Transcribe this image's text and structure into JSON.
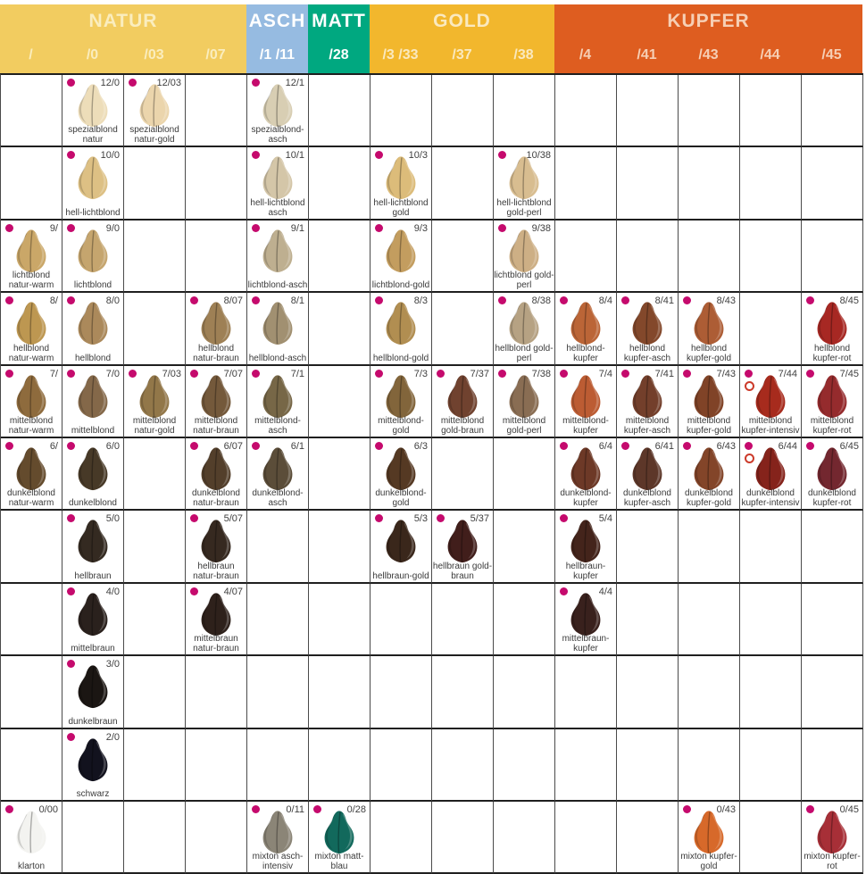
{
  "palette": {
    "dot": "#C50A6D",
    "intensiv_ring": "#CC3A2A",
    "grid_line_heavy": "#1f1f1f",
    "grid_line_light": "#4a4a4a",
    "code_text": "#3f3f3f",
    "name_text": "#3a3a3a"
  },
  "groups": [
    {
      "label": "NATUR",
      "color": "#F2CC60",
      "text": "#FAEDBE",
      "span": 4
    },
    {
      "label": "ASCH",
      "color": "#96BBE1",
      "text": "#FFFFFF",
      "span": 1
    },
    {
      "label": "MATT",
      "color": "#00A880",
      "text": "#FFFFFF",
      "span": 1
    },
    {
      "label": "GOLD",
      "color": "#F2B72D",
      "text": "#FAE9BF",
      "span": 3
    },
    {
      "label": "KUPFER",
      "color": "#DE5D20",
      "text": "#F6CFB5",
      "span": 5
    }
  ],
  "columns": [
    "/",
    "/0",
    "/03",
    "/07",
    "/1 /11",
    "/28",
    "/3 /33",
    "/37",
    "/38",
    "/4",
    "/41",
    "/43",
    "/44",
    "/45"
  ],
  "rows": [
    [
      null,
      {
        "code": "12/0",
        "name": "spezialblond natur",
        "color": "#EDDDB9"
      },
      {
        "code": "12/03",
        "name": "spezialblond natur-gold",
        "color": "#EBD5AC"
      },
      null,
      {
        "code": "12/1",
        "name": "spezialblond-asch",
        "color": "#D8CEB3"
      },
      null,
      null,
      null,
      null,
      null,
      null,
      null,
      null,
      null
    ],
    [
      null,
      {
        "code": "10/0",
        "name": "hell-lichtblond",
        "color": "#DDC084"
      },
      null,
      null,
      {
        "code": "10/1",
        "name": "hell-lichtblond asch",
        "color": "#D4C6A8"
      },
      null,
      {
        "code": "10/3",
        "name": "hell-lichtblond gold",
        "color": "#DCBC7A"
      },
      null,
      {
        "code": "10/38",
        "name": "hell-lichtblond gold-perl",
        "color": "#D8BD90"
      },
      null,
      null,
      null,
      null,
      null
    ],
    [
      {
        "code": "9/",
        "name": "lichtblond natur-warm",
        "color": "#CAA768"
      },
      {
        "code": "9/0",
        "name": "lichtblond",
        "color": "#C5A56E"
      },
      null,
      null,
      {
        "code": "9/1",
        "name": "lichtblond-asch",
        "color": "#BEAF90"
      },
      null,
      {
        "code": "9/3",
        "name": "lichtblond-gold",
        "color": "#C39D5F"
      },
      null,
      {
        "code": "9/38",
        "name": "lichtblond gold-perl",
        "color": "#CDAF85"
      },
      null,
      null,
      null,
      null,
      null
    ],
    [
      {
        "code": "8/",
        "name": "hellblond natur-warm",
        "color": "#BD9751"
      },
      {
        "code": "8/0",
        "name": "hellblond",
        "color": "#AB895B"
      },
      null,
      {
        "code": "8/07",
        "name": "hellblond natur-braun",
        "color": "#9E8055"
      },
      {
        "code": "8/1",
        "name": "hellblond-asch",
        "color": "#A19071"
      },
      null,
      {
        "code": "8/3",
        "name": "hellblond-gold",
        "color": "#B18E51"
      },
      null,
      {
        "code": "8/38",
        "name": "hellblond gold-perl",
        "color": "#B6A283"
      },
      {
        "code": "8/4",
        "name": "hellblond-kupfer",
        "color": "#BB6537"
      },
      {
        "code": "8/41",
        "name": "hellblond kupfer-asch",
        "color": "#83482B"
      },
      {
        "code": "8/43",
        "name": "hellblond kupfer-gold",
        "color": "#AD5D35"
      },
      null,
      {
        "code": "8/45",
        "name": "hellblond kupfer-rot",
        "color": "#A72823"
      }
    ],
    [
      {
        "code": "7/",
        "name": "mittelblond natur-warm",
        "color": "#8E6B3D"
      },
      {
        "code": "7/0",
        "name": "mittelblond",
        "color": "#846849"
      },
      {
        "code": "7/03",
        "name": "mittelblond natur-gold",
        "color": "#927749"
      },
      {
        "code": "7/07",
        "name": "mittelblond natur-braun",
        "color": "#74593B"
      },
      {
        "code": "7/1",
        "name": "mittelblond-asch",
        "color": "#776747"
      },
      null,
      {
        "code": "7/3",
        "name": "mittelblond-gold",
        "color": "#82653B"
      },
      {
        "code": "7/37",
        "name": "mittelblond gold-braun",
        "color": "#70422F"
      },
      {
        "code": "7/38",
        "name": "mittelblond gold-perl",
        "color": "#896D53"
      },
      {
        "code": "7/4",
        "name": "mittelblond-kupfer",
        "color": "#BC5C33"
      },
      {
        "code": "7/41",
        "name": "mittelblond kupfer-asch",
        "color": "#733F2B"
      },
      {
        "code": "7/43",
        "name": "mittelblond kupfer-gold",
        "color": "#804327"
      },
      {
        "code": "7/44",
        "name": "mittelblond kupfer-intensiv",
        "color": "#A72B1D",
        "marker": true
      },
      {
        "code": "7/45",
        "name": "mittelblond kupfer-rot",
        "color": "#952B2D"
      }
    ],
    [
      {
        "code": "6/",
        "name": "dunkelblond natur-warm",
        "color": "#644B2D"
      },
      {
        "code": "6/0",
        "name": "dunkelblond",
        "color": "#473927"
      },
      null,
      {
        "code": "6/07",
        "name": "dunkelblond natur-braun",
        "color": "#533F2B"
      },
      {
        "code": "6/1",
        "name": "dunkelblond-asch",
        "color": "#5B4D39"
      },
      null,
      {
        "code": "6/3",
        "name": "dunkelblond-gold",
        "color": "#553923"
      },
      null,
      null,
      {
        "code": "6/4",
        "name": "dunkelblond-kupfer",
        "color": "#6D3927"
      },
      {
        "code": "6/41",
        "name": "dunkelblond kupfer-asch",
        "color": "#5D3729"
      },
      {
        "code": "6/43",
        "name": "dunkelblond kupfer-gold",
        "color": "#834529"
      },
      {
        "code": "6/44",
        "name": "dunkelblond kupfer-intensiv",
        "color": "#85231B",
        "marker": true
      },
      {
        "code": "6/45",
        "name": "dunkelblond kupfer-rot",
        "color": "#73272F"
      }
    ],
    [
      null,
      {
        "code": "5/0",
        "name": "hellbraun",
        "color": "#342A21"
      },
      null,
      {
        "code": "5/07",
        "name": "hellbraun natur-braun",
        "color": "#362920"
      },
      null,
      null,
      {
        "code": "5/3",
        "name": "hellbraun-gold",
        "color": "#3A271B"
      },
      {
        "code": "5/37",
        "name": "hellbraun gold-braun",
        "color": "#411E1B"
      },
      null,
      {
        "code": "5/4",
        "name": "hellbraun-kupfer",
        "color": "#44241B"
      },
      null,
      null,
      null,
      null
    ],
    [
      null,
      {
        "code": "4/0",
        "name": "mittelbraun",
        "color": "#2A211D"
      },
      null,
      {
        "code": "4/07",
        "name": "mittelbraun natur-braun",
        "color": "#2E211B"
      },
      null,
      null,
      null,
      null,
      null,
      {
        "code": "4/4",
        "name": "mittelbraun-kupfer",
        "color": "#39211D"
      },
      null,
      null,
      null,
      null
    ],
    [
      null,
      {
        "code": "3/0",
        "name": "dunkelbraun",
        "color": "#1B1613"
      },
      null,
      null,
      null,
      null,
      null,
      null,
      null,
      null,
      null,
      null,
      null,
      null
    ],
    [
      null,
      {
        "code": "2/0",
        "name": "schwarz",
        "color": "#12121E"
      },
      null,
      null,
      null,
      null,
      null,
      null,
      null,
      null,
      null,
      null,
      null,
      null
    ],
    [
      {
        "code": "0/00",
        "name": "klarton",
        "color": "#F3F3F0"
      },
      null,
      null,
      null,
      {
        "code": "0/11",
        "name": "mixton asch-intensiv",
        "color": "#8B8577"
      },
      {
        "code": "0/28",
        "name": "mixton matt-blau",
        "color": "#12695C"
      },
      null,
      null,
      null,
      null,
      null,
      {
        "code": "0/43",
        "name": "mixton kupfer-gold",
        "color": "#D7692A"
      },
      null,
      {
        "code": "0/45",
        "name": "mixton kupfer-rot",
        "color": "#A72F37"
      }
    ]
  ]
}
